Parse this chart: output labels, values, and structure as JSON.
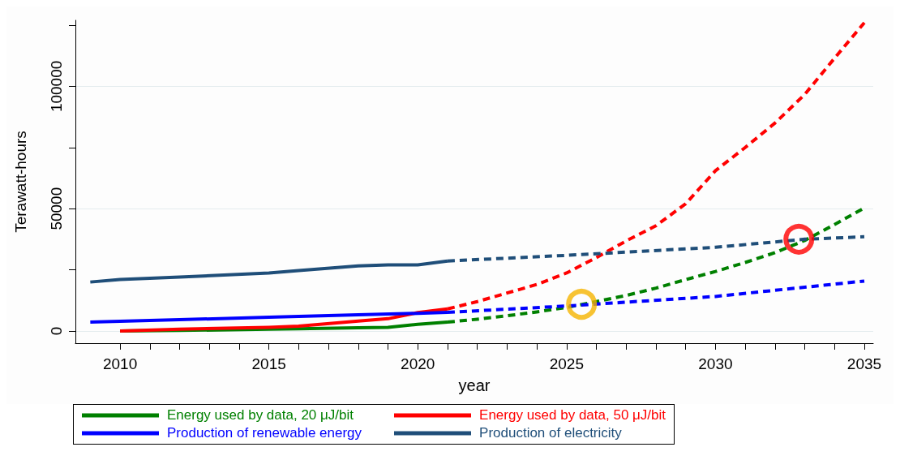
{
  "chart_data": {
    "type": "line",
    "xlabel": "year",
    "ylabel": "Terawatt-hours",
    "xlim": [
      2008.5,
      2035.3
    ],
    "ylim": [
      -5000,
      127000
    ],
    "xticks": [
      2010,
      {
        "value": 2011,
        "label": null
      },
      {
        "value": 2012,
        "label": null
      },
      {
        "value": 2013,
        "label": null
      },
      {
        "value": 2014,
        "label": null
      },
      2015,
      {
        "value": 2016,
        "label": null
      },
      {
        "value": 2017,
        "label": null
      },
      {
        "value": 2018,
        "label": null
      },
      {
        "value": 2019,
        "label": null
      },
      2020,
      {
        "value": 2021,
        "label": null
      },
      {
        "value": 2022,
        "label": null
      },
      {
        "value": 2023,
        "label": null
      },
      {
        "value": 2024,
        "label": null
      },
      2025,
      {
        "value": 2026,
        "label": null
      },
      {
        "value": 2027,
        "label": null
      },
      {
        "value": 2028,
        "label": null
      },
      {
        "value": 2029,
        "label": null
      },
      2030,
      {
        "value": 2031,
        "label": null
      },
      {
        "value": 2032,
        "label": null
      },
      {
        "value": 2033,
        "label": null
      },
      {
        "value": 2034,
        "label": null
      },
      2035
    ],
    "yticks": [
      0,
      {
        "value": 25000,
        "label": null
      },
      50000,
      {
        "value": 75000,
        "label": null
      },
      100000,
      {
        "value": 125000,
        "label": null
      }
    ],
    "grid": "y",
    "legend": "bottom",
    "marker": "none",
    "line_style": "solid",
    "series": [
      {
        "name": "Energy used by data, 20 μJ/bit",
        "color": "#008000",
        "x": [
          2010,
          2012,
          2015,
          2016,
          2018,
          2019,
          2020,
          2021
        ],
        "values": [
          0,
          200,
          700,
          900,
          1300,
          1500,
          2700,
          3600
        ]
      },
      {
        "name": "Energy used by data, 50 μJ/bit",
        "color": "#ff0000",
        "x": [
          2010,
          2012,
          2015,
          2016,
          2018,
          2019,
          2020,
          2021
        ],
        "values": [
          0,
          700,
          1500,
          2000,
          4000,
          5000,
          7500,
          9000
        ]
      },
      {
        "name": "Production of renewable energy",
        "color": "#0000ff",
        "x": [
          2009,
          2012,
          2015,
          2018,
          2020,
          2021
        ],
        "values": [
          3600,
          4600,
          5600,
          6600,
          7200,
          7600
        ]
      },
      {
        "name": "Production of electricity",
        "color": "#1f4e79",
        "x": [
          2009,
          2010,
          2012,
          2015,
          2016,
          2018,
          2019,
          2020,
          2021
        ],
        "values": [
          20000,
          21000,
          22000,
          23700,
          24700,
          26600,
          27000,
          27000,
          28600
        ]
      },
      {
        "color": "#008000",
        "line_style": "dashed",
        "x": [
          2021,
          2022,
          2023,
          2024,
          2025,
          2026,
          2027,
          2028,
          2029,
          2030,
          2031,
          2032,
          2033,
          2034,
          2035
        ],
        "values": [
          3600,
          4800,
          6200,
          7800,
          9600,
          12000,
          14500,
          17500,
          21000,
          24300,
          28000,
          32000,
          37000,
          43500,
          50300
        ]
      },
      {
        "color": "#ff0000",
        "line_style": "dashed",
        "x": [
          2021,
          2022,
          2023,
          2024,
          2025,
          2026,
          2027,
          2028,
          2029,
          2030,
          2031,
          2032,
          2033,
          2034,
          2035
        ],
        "values": [
          9000,
          12000,
          15500,
          19000,
          23700,
          30000,
          36800,
          43000,
          52000,
          65500,
          75000,
          85000,
          96700,
          111500,
          126000
        ]
      },
      {
        "color": "#0000ff",
        "line_style": "dashed",
        "x": [
          2021,
          2025,
          2030,
          2035
        ],
        "values": [
          7600,
          10200,
          14100,
          20400
        ]
      },
      {
        "color": "#1f4e79",
        "line_style": "dashed",
        "x": [
          2021,
          2025,
          2030,
          2033,
          2035
        ],
        "values": [
          28600,
          30900,
          34200,
          37500,
          38500
        ]
      },
      {
        "type": "scatter",
        "marker": "circle",
        "color": "#f5b400",
        "x": [
          2025.5
        ],
        "values": [
          10900
        ]
      },
      {
        "type": "scatter",
        "marker": "circle",
        "color": "#ff0000",
        "x": [
          2032.8
        ],
        "values": [
          37500
        ]
      }
    ]
  }
}
